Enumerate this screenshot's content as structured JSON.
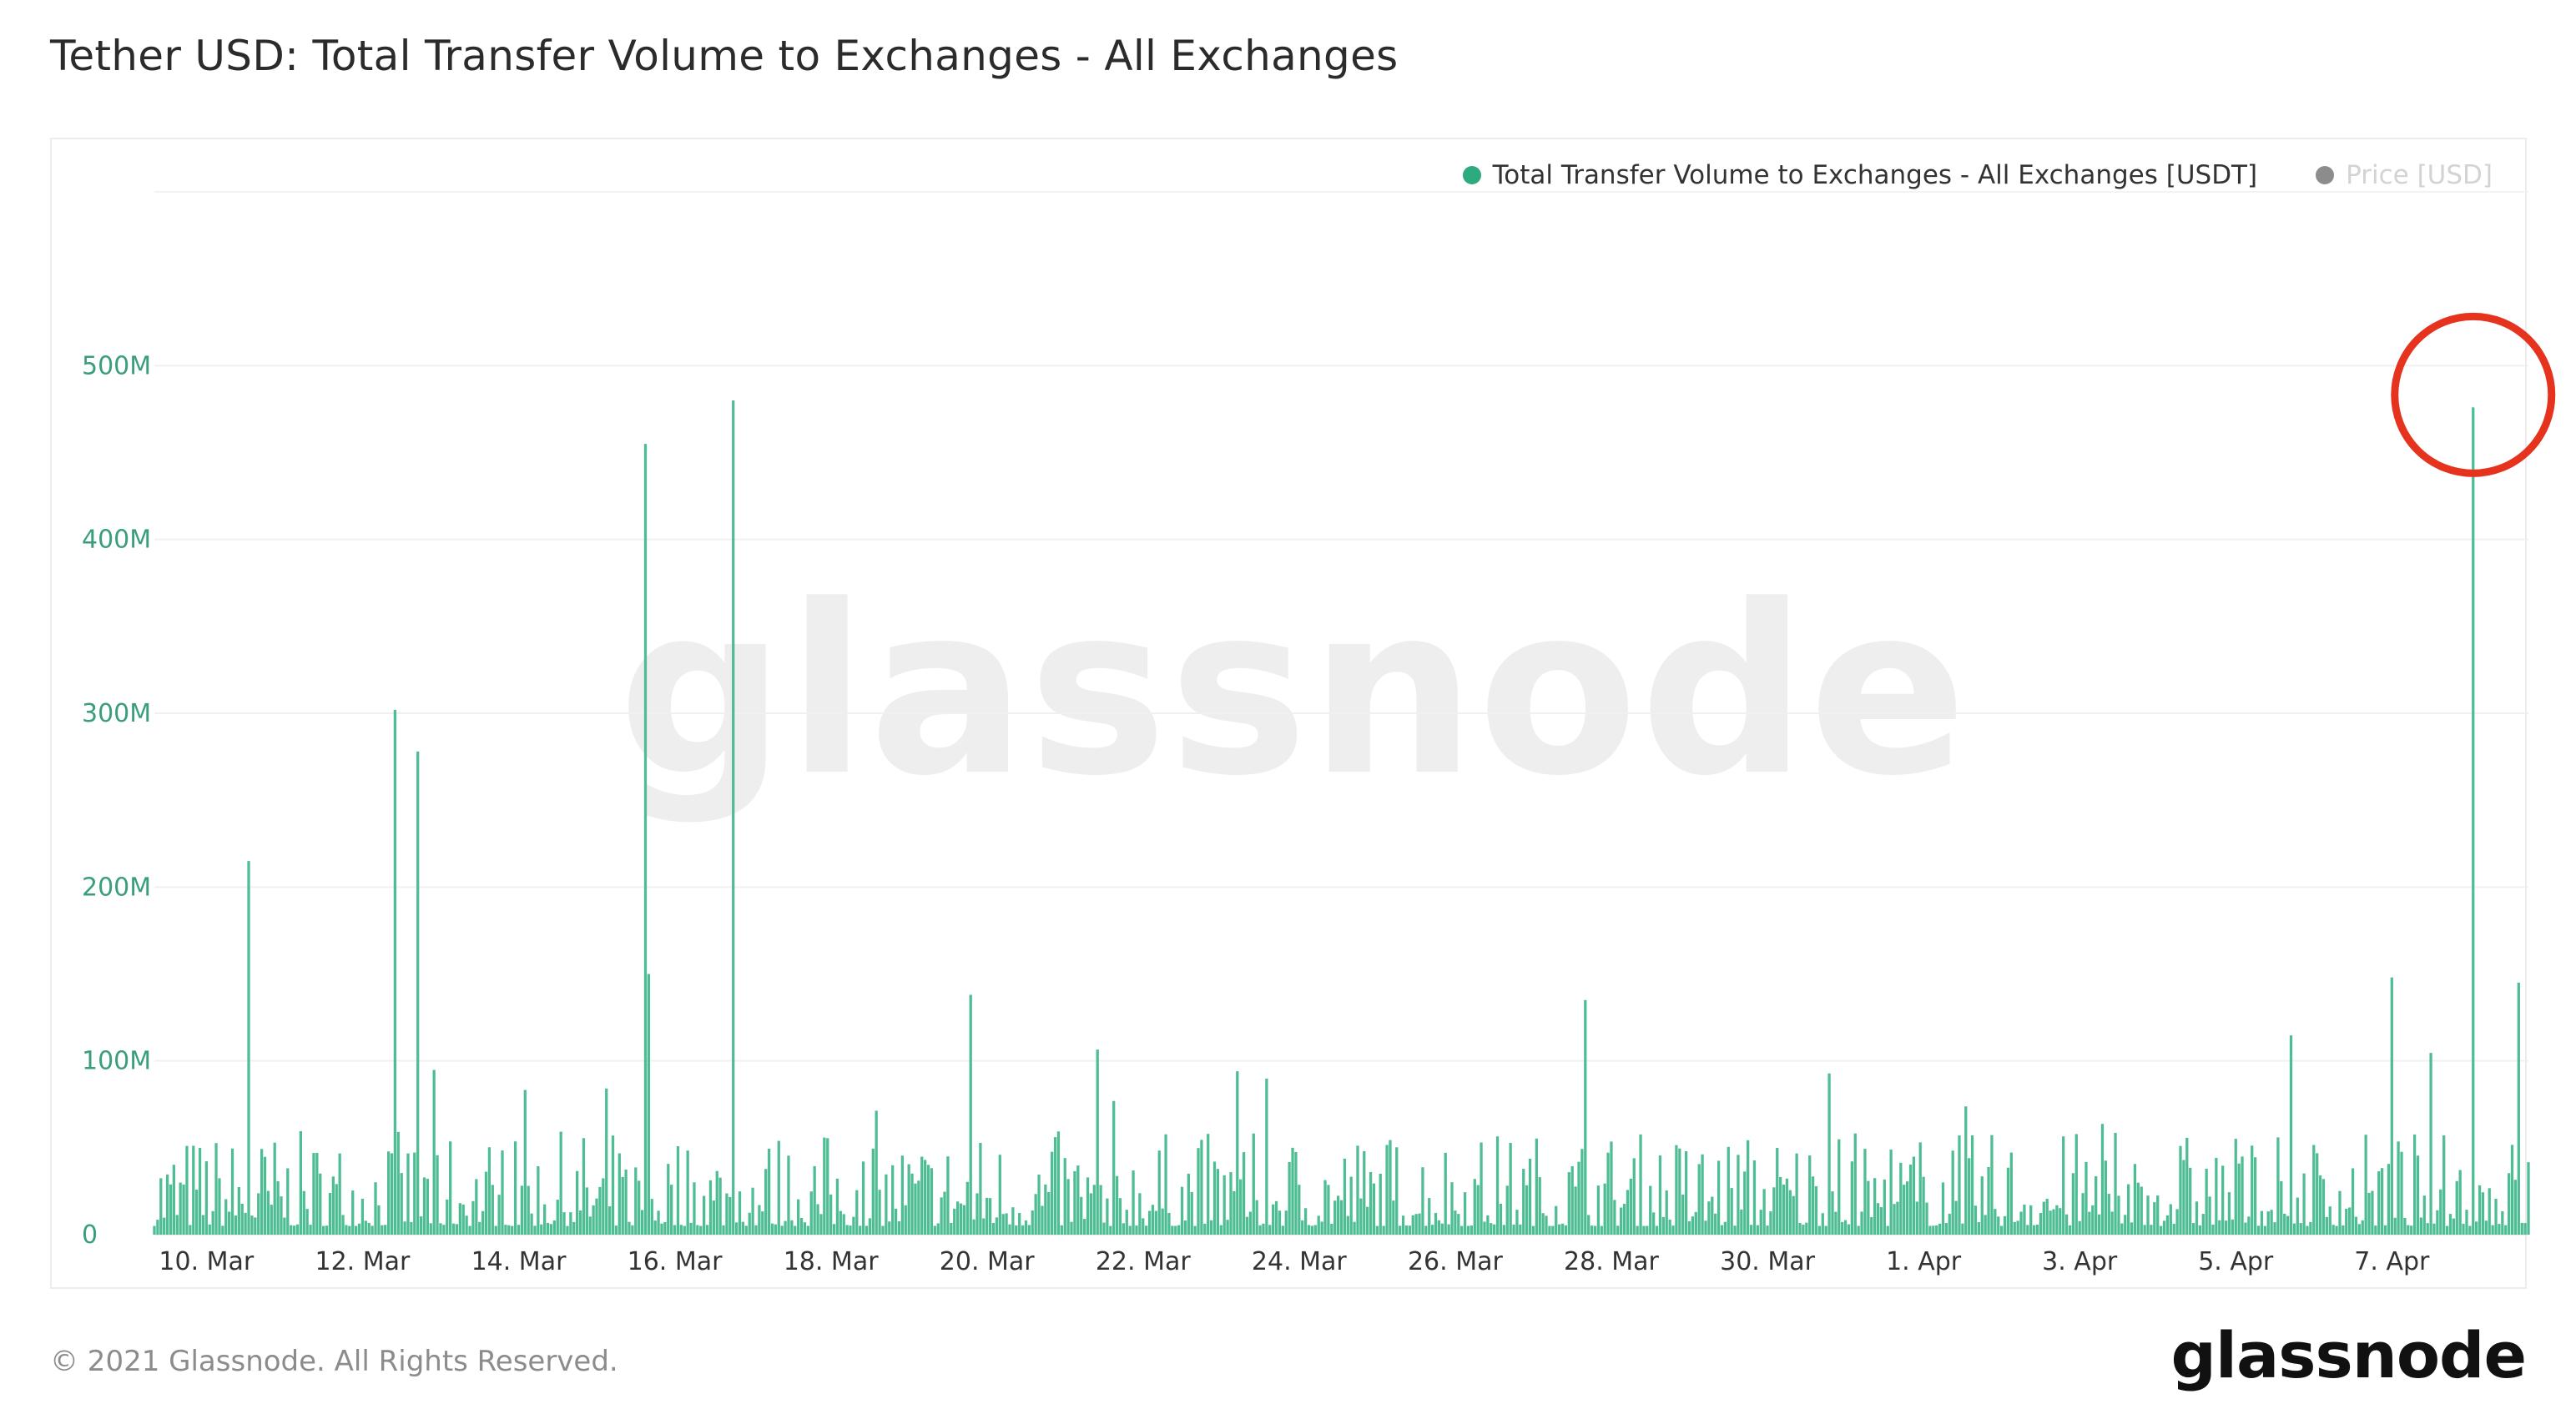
{
  "title": "Tether USD: Total Transfer Volume to Exchanges - All Exchanges",
  "footer": {
    "copyright": "© 2021 Glassnode. All Rights Reserved.",
    "logo": "glassnode"
  },
  "watermark": "glassnode",
  "colors": {
    "series": "#2eaa7f",
    "bar": "#4fbd93",
    "axis_text": "#3a9e7a",
    "highlight": "#e5331e",
    "price": "#8c8c8c"
  },
  "chart_data": {
    "type": "bar",
    "title": "Tether USD: Total Transfer Volume to Exchanges - All Exchanges",
    "legend": [
      {
        "label": "Total Transfer Volume to Exchanges - All Exchanges [USDT]",
        "color": "#2eaa7f",
        "active": true
      },
      {
        "label": "Price [USD]",
        "color": "#8c8c8c",
        "active": false
      }
    ],
    "legend_position": "top-right",
    "x_ticks": [
      "10. Mar",
      "12. Mar",
      "14. Mar",
      "16. Mar",
      "18. Mar",
      "20. Mar",
      "22. Mar",
      "24. Mar",
      "26. Mar",
      "28. Mar",
      "30. Mar",
      "1. Apr",
      "3. Apr",
      "5. Apr",
      "7. Apr"
    ],
    "y_ticks": [
      "0",
      "100M",
      "200M",
      "300M",
      "400M",
      "500M"
    ],
    "ylim": [
      0,
      600000000
    ],
    "grid": true,
    "x_range": [
      "2021-03-09T08:00",
      "2021-04-08T18:00"
    ],
    "interval": "hourly",
    "spikes": [
      {
        "x": "2021-03-10T13:00",
        "value": 215000000
      },
      {
        "x": "2021-03-12T10:00",
        "value": 302000000
      },
      {
        "x": "2021-03-12T17:00",
        "value": 278000000
      },
      {
        "x": "2021-03-15T15:00",
        "value": 455000000
      },
      {
        "x": "2021-03-15T16:00",
        "value": 150000000
      },
      {
        "x": "2021-03-16T18:00",
        "value": 480000000
      },
      {
        "x": "2021-03-19T19:00",
        "value": 138000000
      },
      {
        "x": "2021-03-27T16:00",
        "value": 135000000
      },
      {
        "x": "2021-04-07T00:00",
        "value": 148000000
      },
      {
        "x": "2021-04-08T01:00",
        "value": 476000000
      },
      {
        "x": "2021-04-08T15:00",
        "value": 145000000
      }
    ],
    "typical_range": [
      5000000,
      60000000
    ],
    "highlight": {
      "x": "2021-04-08T01:00",
      "value": 476000000,
      "style": "circle"
    }
  }
}
